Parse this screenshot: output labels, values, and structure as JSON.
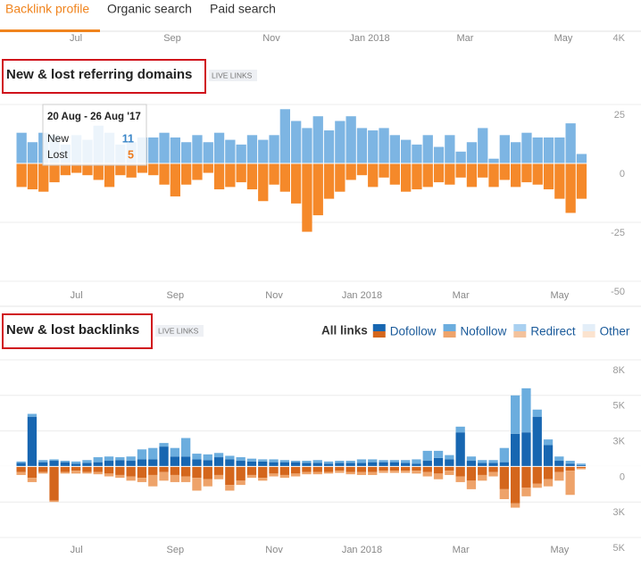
{
  "tabs": [
    "Backlink profile",
    "Organic search",
    "Paid search"
  ],
  "top_axis": {
    "labels": [
      "Jul",
      "Sep",
      "Nov",
      "Jan 2018",
      "Mar",
      "May"
    ],
    "tick": "4K"
  },
  "chart_data": [
    {
      "type": "bar",
      "title": "New & lost referring domains",
      "badge": "LIVE LINKS",
      "grid": true,
      "categories": [
        null,
        null,
        null,
        null,
        null,
        "Jul",
        null,
        null,
        null,
        null,
        null,
        null,
        null,
        null,
        "Sep",
        null,
        null,
        null,
        null,
        null,
        null,
        null,
        null,
        "Nov",
        null,
        null,
        null,
        null,
        null,
        null,
        null,
        "Jan 2018",
        null,
        null,
        null,
        null,
        null,
        null,
        null,
        null,
        "Mar",
        null,
        null,
        null,
        null,
        null,
        null,
        null,
        null,
        "May",
        null,
        null
      ],
      "series": [
        {
          "name": "New",
          "color": "#7db5e3",
          "values": [
            13,
            9,
            13,
            12,
            8,
            12,
            10,
            16,
            13,
            8,
            9,
            11,
            11,
            13,
            11,
            9,
            12,
            9,
            13,
            10,
            8,
            12,
            10,
            12,
            23,
            18,
            15,
            20,
            14,
            18,
            20,
            15,
            14,
            15,
            12,
            10,
            8,
            12,
            7,
            12,
            5,
            9,
            15,
            2,
            12,
            9,
            13,
            11,
            11,
            11,
            17,
            4
          ]
        },
        {
          "name": "Lost",
          "color": "#f5892a",
          "values": [
            -10,
            -11,
            -12,
            -8,
            -5,
            -4,
            -5,
            -7,
            -10,
            -5,
            -6,
            -4,
            -5,
            -9,
            -14,
            -9,
            -7,
            -4,
            -11,
            -10,
            -8,
            -11,
            -16,
            -9,
            -12,
            -17,
            -29,
            -22,
            -15,
            -12,
            -7,
            -5,
            -10,
            -6,
            -9,
            -12,
            -11,
            -10,
            -8,
            -9,
            -6,
            -10,
            -6,
            -10,
            -7,
            -10,
            -8,
            -9,
            -11,
            -15,
            -21,
            -15
          ]
        }
      ],
      "ylim": [
        -50,
        25
      ],
      "yticks": [
        25,
        0,
        -25,
        -50
      ],
      "tooltip": {
        "title": "20 Aug - 26 Aug '17",
        "values": [
          11,
          5
        ]
      }
    },
    {
      "type": "bar",
      "title": "New & lost backlinks",
      "badge": "LIVE LINKS",
      "grid": true,
      "stacked": true,
      "legend": "top-right",
      "legend_title": "All links",
      "categories": [
        null,
        null,
        null,
        null,
        null,
        "Jul",
        null,
        null,
        null,
        null,
        null,
        null,
        null,
        null,
        "Sep",
        null,
        null,
        null,
        null,
        null,
        null,
        null,
        null,
        "Nov",
        null,
        null,
        null,
        null,
        null,
        null,
        null,
        "Jan 2018",
        null,
        null,
        null,
        null,
        null,
        null,
        null,
        null,
        "Mar",
        null,
        null,
        null,
        null,
        null,
        null,
        null,
        null,
        "May",
        null,
        null
      ],
      "series": [
        {
          "name": "Dofollow",
          "color": "#1766b1",
          "lost_color": "#d4661c",
          "values": [
            250,
            3500,
            300,
            400,
            300,
            200,
            250,
            300,
            400,
            450,
            400,
            500,
            500,
            1400,
            700,
            700,
            500,
            450,
            650,
            500,
            400,
            350,
            350,
            300,
            300,
            300,
            250,
            250,
            200,
            250,
            250,
            250,
            300,
            300,
            300,
            250,
            200,
            400,
            600,
            500,
            2400,
            400,
            250,
            250,
            300,
            2300,
            2400,
            3500,
            1500,
            400,
            200,
            100
          ],
          "lost_values": [
            -400,
            -800,
            -400,
            -2400,
            -400,
            -300,
            -400,
            -400,
            -500,
            -600,
            -700,
            -800,
            -600,
            -400,
            -600,
            -700,
            -800,
            -900,
            -600,
            -1300,
            -1000,
            -600,
            -800,
            -500,
            -600,
            -500,
            -400,
            -400,
            -400,
            -300,
            -400,
            -400,
            -400,
            -300,
            -300,
            -300,
            -300,
            -400,
            -500,
            -300,
            -700,
            -1000,
            -600,
            -400,
            -1600,
            -2600,
            -1500,
            -1200,
            -900,
            -400,
            -300,
            -100
          ]
        },
        {
          "name": "Nofollow",
          "color": "#6badde",
          "lost_color": "#eea36a",
          "values": [
            100,
            200,
            150,
            100,
            100,
            150,
            200,
            350,
            300,
            200,
            300,
            700,
            800,
            250,
            600,
            1300,
            400,
            400,
            300,
            250,
            250,
            200,
            150,
            200,
            150,
            100,
            150,
            200,
            150,
            150,
            150,
            250,
            200,
            150,
            150,
            200,
            300,
            700,
            500,
            300,
            400,
            300,
            200,
            200,
            1000,
            2700,
            3100,
            500,
            400,
            300,
            200,
            100
          ],
          "lost_values": [
            -200,
            -300,
            -100,
            -100,
            -100,
            -200,
            -100,
            -150,
            -200,
            -200,
            -300,
            -300,
            -800,
            -600,
            -500,
            -400,
            -900,
            -500,
            -300,
            -400,
            -300,
            -200,
            -200,
            -200,
            -200,
            -200,
            -150,
            -150,
            -100,
            -150,
            -150,
            -200,
            -200,
            -150,
            -150,
            -150,
            -200,
            -300,
            -400,
            -300,
            -400,
            -600,
            -400,
            -300,
            -700,
            -300,
            -600,
            -300,
            -500,
            -600,
            -1700,
            -100
          ]
        },
        {
          "name": "Redirect",
          "color": "#a9d0f0",
          "lost_color": "#f3c29c"
        },
        {
          "name": "Other",
          "color": "#e3eef8",
          "lost_color": "#fbe3cf"
        }
      ],
      "ylim": [
        -5000,
        7500
      ],
      "yticks": [
        {
          "value": 7500,
          "label": "8K"
        },
        {
          "value": 5000,
          "label": "5K"
        },
        {
          "value": 2500,
          "label": "3K"
        },
        0,
        {
          "value": -2500,
          "label": "3K"
        },
        {
          "value": -5000,
          "label": "5K"
        }
      ]
    }
  ]
}
